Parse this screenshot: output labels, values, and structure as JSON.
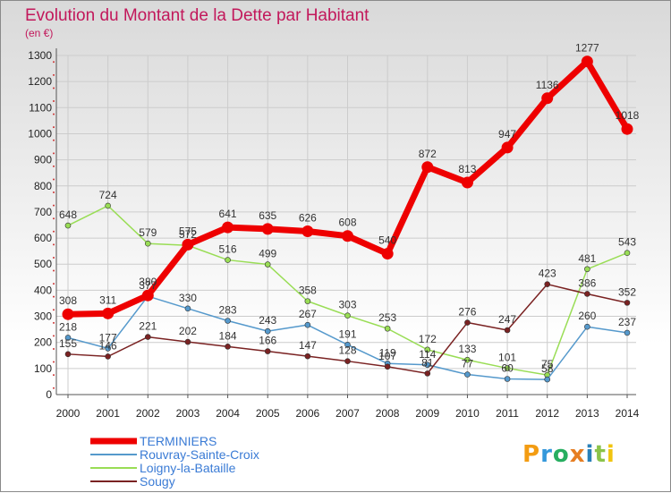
{
  "title": "Evolution du Montant de la Dette par Habitant",
  "subtitle": "(en €)",
  "logo": "Proxiti",
  "chart_data": {
    "type": "line",
    "title": "Evolution du Montant de la Dette par Habitant",
    "ylabel": "(en €)",
    "xlabel": "",
    "ylim": [
      0,
      1300
    ],
    "yticks": [
      0,
      100,
      200,
      300,
      400,
      500,
      600,
      700,
      800,
      900,
      1000,
      1100,
      1200,
      1300
    ],
    "x": [
      "2000",
      "2001",
      "2002",
      "2003",
      "2004",
      "2005",
      "2006",
      "2007",
      "2008",
      "2009",
      "2010",
      "2011",
      "2012",
      "2013",
      "2014"
    ],
    "grid": true,
    "legend": "bottom-left",
    "series": [
      {
        "name": "Loigny-la-Bataille",
        "color": "#99dd55",
        "values": [
          648,
          724,
          579,
          572,
          516,
          499,
          358,
          303,
          253,
          172,
          133,
          101,
          75,
          481,
          543
        ]
      },
      {
        "name": "Rouvray-Sainte-Croix",
        "color": "#5599cc",
        "values": [
          218,
          177,
          377,
          330,
          283,
          243,
          267,
          191,
          119,
          114,
          77,
          60,
          58,
          260,
          237
        ]
      },
      {
        "name": "Sougy",
        "color": "#7a2222",
        "values": [
          155,
          146,
          221,
          202,
          184,
          166,
          147,
          128,
          107,
          81,
          276,
          247,
          423,
          386,
          352
        ]
      },
      {
        "name": "TERMINIERS",
        "color": "#ee0000",
        "values": [
          308,
          311,
          380,
          575,
          641,
          635,
          626,
          608,
          540,
          872,
          813,
          947,
          1136,
          1277,
          1018
        ]
      }
    ],
    "labels": {
      "Loigny-la-Bataille": [
        "648",
        "724",
        "579",
        "572",
        "516",
        "499",
        "358",
        "303",
        "253",
        "172",
        "133",
        "101",
        "75",
        "481",
        "543"
      ],
      "Rouvray-Sainte-Croix": [
        "218",
        "177",
        "377",
        "330",
        "283",
        "243",
        "267",
        "191",
        "119",
        "114",
        "77",
        "60",
        "58",
        "260",
        "237"
      ],
      "Sougy": [
        "155",
        "146",
        "221",
        "202",
        "184",
        "166",
        "147",
        "128",
        "107",
        "81",
        "276",
        "247",
        "423",
        "386",
        "352"
      ],
      "TERMINIERS": [
        "308",
        "311",
        "380",
        "575",
        "641",
        "635",
        "626",
        "608",
        "540",
        "872",
        "813",
        "947",
        "1136",
        "1277",
        "1018"
      ]
    }
  },
  "legend_items": [
    "TERMINIERS",
    "Rouvray-Sainte-Croix",
    "Loigny-la-Bataille",
    "Sougy"
  ]
}
